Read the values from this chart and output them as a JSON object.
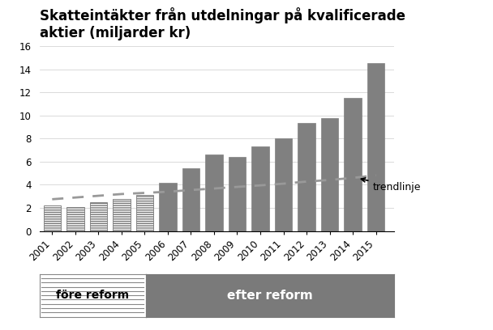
{
  "title": "Skatteintäkter från utdelningar på kvalificerade\naktier (miljarder kr)",
  "years": [
    2001,
    2002,
    2003,
    2004,
    2005,
    2006,
    2007,
    2008,
    2009,
    2010,
    2011,
    2012,
    2013,
    2014,
    2015
  ],
  "values": [
    2.2,
    2.1,
    2.5,
    2.8,
    3.1,
    4.15,
    5.45,
    6.65,
    6.4,
    7.35,
    8.0,
    9.35,
    9.8,
    11.55,
    14.55
  ],
  "fore_reform_years": [
    2001,
    2002,
    2003,
    2004,
    2005
  ],
  "efter_reform_years": [
    2006,
    2007,
    2008,
    2009,
    2010,
    2011,
    2012,
    2013,
    2014,
    2015
  ],
  "bar_color_fore_face": "#bbbbbb",
  "bar_color_fore_edge": "#777777",
  "bar_color_efter": "#808080",
  "trend_color": "#999999",
  "trend_x": [
    2001,
    2002,
    2003,
    2004,
    2005,
    2006,
    2007,
    2008,
    2009,
    2010,
    2011,
    2012,
    2013,
    2014,
    2015
  ],
  "trend_y": [
    2.75,
    2.9,
    3.05,
    3.2,
    3.3,
    3.4,
    3.55,
    3.68,
    3.82,
    3.95,
    4.1,
    4.28,
    4.42,
    4.6,
    4.82
  ],
  "ylim": [
    0,
    16
  ],
  "yticks": [
    0,
    2,
    4,
    6,
    8,
    10,
    12,
    14,
    16
  ],
  "legend_fore_label": "före reform",
  "legend_efter_label": "efter reform",
  "trendlinje_label": "trendlinje",
  "background_color": "#ffffff",
  "title_fontsize": 12,
  "tick_fontsize": 8.5,
  "fore_box_color": "#cccccc",
  "efter_box_color": "#7a7a7a"
}
